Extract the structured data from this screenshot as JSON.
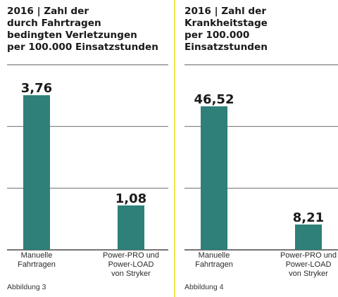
{
  "colors": {
    "bar": "#2e8079",
    "grid": "#5a5a5a",
    "divider": "#f0e34a",
    "text": "#1a1a1a"
  },
  "chart_data": [
    {
      "type": "bar",
      "title_lines": [
        "2016 | Zahl der",
        "durch Fahrtragen",
        "bedingten Verletzungen",
        "per 100.000 Einsatzstunden"
      ],
      "categories": [
        [
          "Manuelle",
          "Fahrtragen"
        ],
        [
          "Power-PRO und",
          "Power-LOAD",
          "von Stryker"
        ]
      ],
      "values": [
        3.76,
        1.08
      ],
      "value_labels": [
        "3,76",
        "1,08"
      ],
      "ylim": [
        0,
        4.5
      ],
      "yticks": [
        0,
        1.5,
        3,
        4.5
      ],
      "grid": true,
      "caption": "Abbildung 3"
    },
    {
      "type": "bar",
      "title_lines": [
        "2016 | Zahl der",
        "Krankheitstage",
        "per 100.000",
        "Einsatzstunden"
      ],
      "categories": [
        [
          "Manuelle",
          "Fahrtragen"
        ],
        [
          "Power-PRO und",
          "Power-LOAD",
          "von Stryker"
        ]
      ],
      "values": [
        46.52,
        8.21
      ],
      "value_labels": [
        "46,52",
        "8,21"
      ],
      "ylim": [
        0,
        60
      ],
      "yticks": [
        0,
        20,
        40,
        60
      ],
      "grid": true,
      "caption": "Abbildung 4"
    }
  ]
}
